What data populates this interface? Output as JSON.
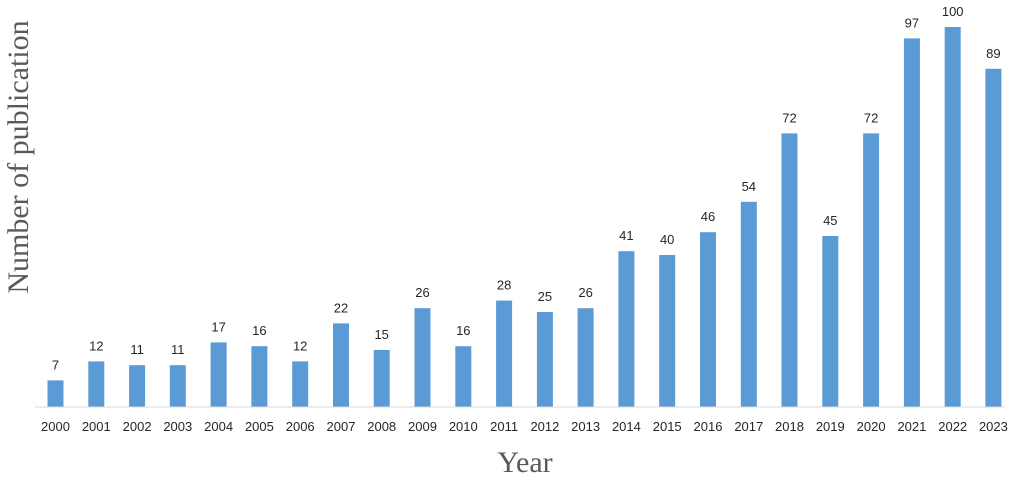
{
  "chart_data": {
    "type": "bar",
    "title": "",
    "xlabel": "Year",
    "ylabel": "Number of publication",
    "categories": [
      "2000",
      "2001",
      "2002",
      "2003",
      "2004",
      "2005",
      "2006",
      "2007",
      "2008",
      "2009",
      "2010",
      "2011",
      "2012",
      "2013",
      "2014",
      "2015",
      "2016",
      "2017",
      "2018",
      "2019",
      "2020",
      "2021",
      "2022",
      "2023"
    ],
    "values": [
      7,
      12,
      11,
      11,
      17,
      16,
      12,
      22,
      15,
      26,
      16,
      28,
      25,
      26,
      41,
      40,
      46,
      54,
      72,
      45,
      72,
      97,
      100,
      89
    ],
    "ylim": [
      0,
      100
    ],
    "grid": false,
    "legend": "none",
    "data_labels": true,
    "bar_color": "#5b9bd5"
  }
}
